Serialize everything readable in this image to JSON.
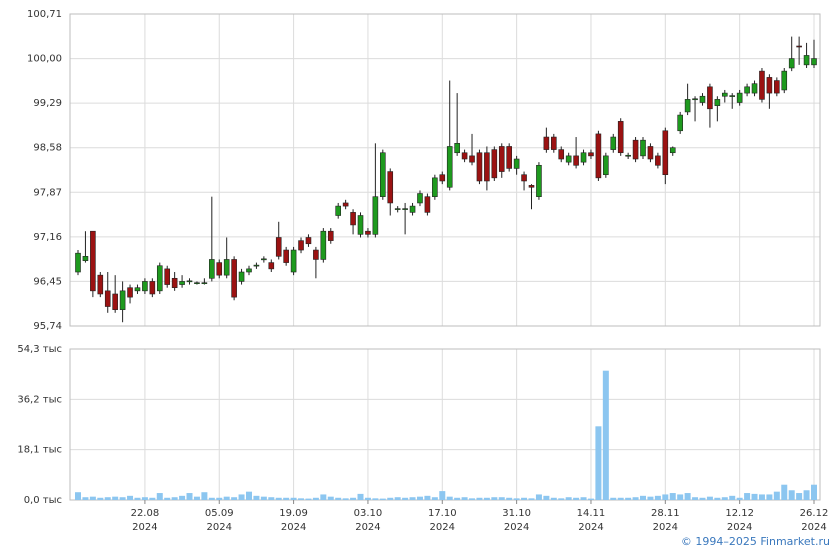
{
  "chart_data": [
    {
      "type": "candlestick",
      "x": [
        "2024-08-09",
        "2024-08-12",
        "2024-08-13",
        "2024-08-14",
        "2024-08-15",
        "2024-08-16",
        "2024-08-19",
        "2024-08-20",
        "2024-08-21",
        "2024-08-22",
        "2024-08-23",
        "2024-08-26",
        "2024-08-27",
        "2024-08-28",
        "2024-08-29",
        "2024-08-30",
        "2024-09-02",
        "2024-09-03",
        "2024-09-04",
        "2024-09-05",
        "2024-09-06",
        "2024-09-09",
        "2024-09-10",
        "2024-09-11",
        "2024-09-12",
        "2024-09-13",
        "2024-09-16",
        "2024-09-17",
        "2024-09-18",
        "2024-09-19",
        "2024-09-20",
        "2024-09-23",
        "2024-09-24",
        "2024-09-25",
        "2024-09-26",
        "2024-09-27",
        "2024-09-30",
        "2024-10-01",
        "2024-10-02",
        "2024-10-03",
        "2024-10-04",
        "2024-10-07",
        "2024-10-08",
        "2024-10-09",
        "2024-10-10",
        "2024-10-11",
        "2024-10-14",
        "2024-10-15",
        "2024-10-16",
        "2024-10-17",
        "2024-10-18",
        "2024-10-21",
        "2024-10-22",
        "2024-10-23",
        "2024-10-24",
        "2024-10-25",
        "2024-10-28",
        "2024-10-29",
        "2024-10-30",
        "2024-10-31",
        "2024-11-01",
        "2024-11-04",
        "2024-11-05",
        "2024-11-06",
        "2024-11-07",
        "2024-11-08",
        "2024-11-11",
        "2024-11-12",
        "2024-11-13",
        "2024-11-14",
        "2024-11-15",
        "2024-11-18",
        "2024-11-19",
        "2024-11-20",
        "2024-11-21",
        "2024-11-22",
        "2024-11-25",
        "2024-11-26",
        "2024-11-27",
        "2024-11-28",
        "2024-11-29",
        "2024-12-02",
        "2024-12-03",
        "2024-12-04",
        "2024-12-05",
        "2024-12-06",
        "2024-12-09",
        "2024-12-10",
        "2024-12-11",
        "2024-12-12",
        "2024-12-13",
        "2024-12-16",
        "2024-12-17",
        "2024-12-18",
        "2024-12-19",
        "2024-12-20",
        "2024-12-23",
        "2024-12-24",
        "2024-12-25",
        "2024-12-26"
      ],
      "open": [
        96.6,
        96.78,
        97.25,
        96.55,
        96.3,
        96.25,
        96.0,
        96.35,
        96.3,
        96.3,
        96.45,
        96.3,
        96.65,
        96.5,
        96.4,
        96.45,
        96.42,
        96.42,
        96.5,
        96.75,
        96.55,
        96.8,
        96.45,
        96.6,
        96.7,
        96.8,
        96.75,
        97.15,
        96.95,
        96.6,
        97.1,
        97.15,
        96.95,
        96.8,
        97.25,
        97.5,
        97.7,
        97.55,
        97.2,
        97.25,
        97.2,
        97.8,
        98.2,
        97.6,
        97.6,
        97.55,
        97.7,
        97.8,
        97.8,
        98.15,
        97.95,
        98.5,
        98.5,
        98.45,
        98.5,
        98.5,
        98.55,
        98.6,
        98.6,
        98.25,
        98.15,
        97.98,
        97.8,
        98.75,
        98.75,
        98.55,
        98.35,
        98.45,
        98.35,
        98.5,
        98.8,
        98.15,
        98.55,
        99.0,
        98.45,
        98.7,
        98.45,
        98.6,
        98.45,
        98.85,
        98.5,
        98.85,
        99.15,
        99.35,
        99.3,
        99.55,
        99.25,
        99.4,
        99.4,
        99.3,
        99.45,
        99.45,
        99.8,
        99.7,
        99.65,
        99.5,
        99.85,
        100.2,
        99.9,
        99.9
      ],
      "high": [
        96.95,
        97.25,
        97.25,
        96.6,
        96.6,
        96.55,
        96.45,
        96.4,
        96.4,
        96.5,
        96.5,
        96.75,
        96.7,
        96.6,
        96.55,
        96.5,
        96.45,
        96.5,
        97.8,
        96.8,
        97.15,
        96.85,
        96.65,
        96.7,
        96.75,
        96.85,
        96.8,
        97.4,
        97.0,
        97.0,
        97.15,
        97.2,
        97.0,
        97.3,
        97.3,
        97.7,
        97.75,
        97.6,
        97.55,
        97.3,
        98.65,
        98.55,
        98.25,
        97.65,
        97.7,
        97.7,
        97.9,
        97.85,
        98.15,
        98.2,
        99.65,
        99.45,
        98.55,
        98.8,
        98.55,
        98.6,
        98.6,
        98.65,
        98.65,
        98.45,
        98.2,
        98.0,
        98.35,
        98.9,
        98.8,
        98.6,
        98.5,
        98.75,
        98.55,
        98.55,
        98.85,
        98.5,
        98.8,
        99.05,
        98.5,
        98.75,
        98.75,
        98.65,
        98.5,
        98.9,
        98.6,
        99.15,
        99.6,
        99.4,
        99.45,
        99.6,
        99.4,
        99.5,
        99.45,
        99.5,
        99.6,
        99.65,
        99.85,
        99.75,
        99.7,
        99.85,
        100.35,
        100.35,
        100.25,
        100.3
      ],
      "low": [
        96.55,
        96.75,
        96.2,
        96.2,
        95.95,
        95.95,
        95.8,
        96.1,
        96.25,
        96.25,
        96.2,
        96.25,
        96.35,
        96.3,
        96.35,
        96.4,
        96.4,
        96.4,
        96.45,
        96.5,
        96.5,
        96.15,
        96.4,
        96.55,
        96.65,
        96.75,
        96.6,
        96.8,
        96.7,
        96.55,
        96.9,
        97.0,
        96.5,
        96.75,
        97.05,
        97.45,
        97.6,
        97.2,
        97.15,
        97.15,
        97.15,
        97.75,
        97.5,
        97.55,
        97.2,
        97.5,
        97.65,
        97.5,
        97.75,
        98.0,
        97.9,
        98.45,
        98.35,
        98.3,
        98.0,
        97.9,
        98.05,
        98.1,
        98.2,
        98.15,
        97.9,
        97.6,
        97.75,
        98.5,
        98.5,
        98.35,
        98.3,
        98.25,
        98.3,
        98.4,
        98.05,
        98.1,
        98.5,
        98.45,
        98.4,
        98.35,
        98.4,
        98.35,
        98.25,
        98.0,
        98.45,
        98.8,
        99.1,
        99.0,
        99.25,
        98.9,
        99.0,
        99.3,
        99.2,
        99.25,
        99.4,
        99.4,
        99.3,
        99.2,
        99.4,
        99.45,
        99.8,
        99.9,
        99.85,
        99.85
      ],
      "close": [
        96.9,
        96.85,
        96.3,
        96.25,
        96.05,
        96.0,
        96.3,
        96.2,
        96.35,
        96.45,
        96.25,
        96.7,
        96.4,
        96.35,
        96.45,
        96.46,
        96.43,
        96.43,
        96.8,
        96.55,
        96.8,
        96.2,
        96.6,
        96.65,
        96.71,
        96.81,
        96.65,
        96.85,
        96.75,
        96.95,
        96.95,
        97.05,
        96.8,
        97.25,
        97.1,
        97.65,
        97.65,
        97.35,
        97.5,
        97.2,
        97.8,
        98.5,
        97.7,
        97.61,
        97.61,
        97.65,
        97.85,
        97.55,
        98.1,
        98.05,
        98.6,
        98.65,
        98.4,
        98.35,
        98.05,
        98.05,
        98.1,
        98.2,
        98.25,
        98.4,
        98.05,
        97.95,
        98.3,
        98.55,
        98.55,
        98.4,
        98.45,
        98.3,
        98.5,
        98.45,
        98.1,
        98.45,
        98.75,
        98.5,
        98.46,
        98.4,
        98.7,
        98.4,
        98.3,
        98.15,
        98.58,
        99.1,
        99.35,
        99.36,
        99.4,
        99.2,
        99.35,
        99.45,
        99.41,
        99.45,
        99.55,
        99.6,
        99.35,
        99.45,
        99.45,
        99.8,
        100.0,
        100.19,
        100.05,
        100.0
      ],
      "up_color": "#1e9a1e",
      "down_color": "#9b1212",
      "ylim": [
        95.74,
        100.71
      ],
      "yticks": [
        {
          "value": 95.74,
          "label": "95,74"
        },
        {
          "value": 96.45,
          "label": "96,45"
        },
        {
          "value": 97.16,
          "label": "97,16"
        },
        {
          "value": 97.87,
          "label": "97,87"
        },
        {
          "value": 98.58,
          "label": "98,58"
        },
        {
          "value": 99.29,
          "label": "99,29"
        },
        {
          "value": 100,
          "label": "100,00"
        },
        {
          "value": 100.71,
          "label": "100,71"
        }
      ],
      "xticks": [
        {
          "value": "2024-08-22",
          "label": "22.08\n2024"
        },
        {
          "value": "2024-09-05",
          "label": "05.09\n2024"
        },
        {
          "value": "2024-09-19",
          "label": "19.09\n2024"
        },
        {
          "value": "2024-10-03",
          "label": "03.10\n2024"
        },
        {
          "value": "2024-10-17",
          "label": "17.10\n2024"
        },
        {
          "value": "2024-10-31",
          "label": "31.10\n2024"
        },
        {
          "value": "2024-11-14",
          "label": "14.11\n2024"
        },
        {
          "value": "2024-11-28",
          "label": "28.11\n2024"
        },
        {
          "value": "2024-12-12",
          "label": "12.12\n2024"
        },
        {
          "value": "2024-12-26",
          "label": "26.12\n2024"
        }
      ],
      "grid": true
    },
    {
      "type": "bar",
      "values": [
        2.8,
        1.0,
        1.2,
        0.8,
        1.0,
        1.2,
        1.0,
        1.5,
        0.8,
        1.0,
        0.8,
        2.5,
        0.8,
        1.0,
        1.5,
        2.5,
        1.2,
        2.8,
        0.8,
        0.8,
        1.2,
        1.0,
        2.0,
        3.0,
        1.5,
        1.2,
        1.0,
        0.8,
        0.8,
        0.8,
        0.6,
        0.5,
        0.8,
        2.0,
        1.2,
        0.8,
        0.6,
        0.8,
        2.2,
        0.8,
        0.6,
        0.5,
        0.8,
        1.0,
        0.8,
        1.0,
        1.2,
        1.5,
        1.0,
        3.2,
        1.2,
        0.8,
        1.0,
        0.6,
        0.8,
        0.8,
        1.0,
        1.0,
        0.8,
        0.6,
        0.8,
        0.6,
        2.0,
        1.5,
        0.8,
        0.6,
        1.0,
        0.8,
        1.0,
        0.5,
        26.5,
        46.5,
        0.8,
        0.8,
        0.8,
        1.0,
        1.5,
        1.2,
        1.5,
        2.0,
        2.5,
        2.0,
        2.5,
        1.0,
        0.8,
        1.2,
        0.8,
        1.0,
        1.5,
        0.8,
        2.5,
        2.2,
        2.0,
        2.0,
        3.0,
        5.5,
        3.5,
        2.5,
        3.5,
        5.5
      ],
      "color": "#8cc6f0",
      "ylim": [
        0,
        54.3
      ],
      "yticks": [
        {
          "value": 0,
          "label": "0,0 тыс"
        },
        {
          "value": 18.1,
          "label": "18,1 тыс"
        },
        {
          "value": 36.2,
          "label": "36,2 тыс"
        },
        {
          "value": 54.3,
          "label": "54,3 тыс"
        }
      ],
      "grid": true
    }
  ],
  "footer": "© 1994–2025 Finmarket.ru"
}
